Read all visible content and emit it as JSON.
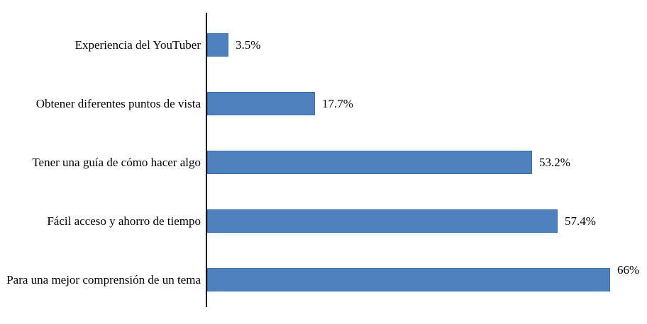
{
  "chart_data": {
    "type": "bar",
    "orientation": "horizontal",
    "title": "",
    "xlabel": "",
    "ylabel": "",
    "categories": [
      "Experiencia del YouTuber",
      "Obtener diferentes puntos de vista",
      "Tener una guía de cómo hacer algo",
      "Fácil acceso y ahorro de tiempo",
      "Para una mejor comprensión de un tema"
    ],
    "values": [
      3.5,
      17.7,
      53.2,
      57.4,
      66
    ],
    "value_labels": [
      "3.5%",
      "17.7%",
      "53.2%",
      "57.4%",
      "66%"
    ],
    "xlim": [
      0,
      72
    ],
    "grid": false,
    "legend": false,
    "bar_color": "#4F81BD",
    "bar_border_color": "#3E6CA5",
    "axis_color": "#000000"
  }
}
